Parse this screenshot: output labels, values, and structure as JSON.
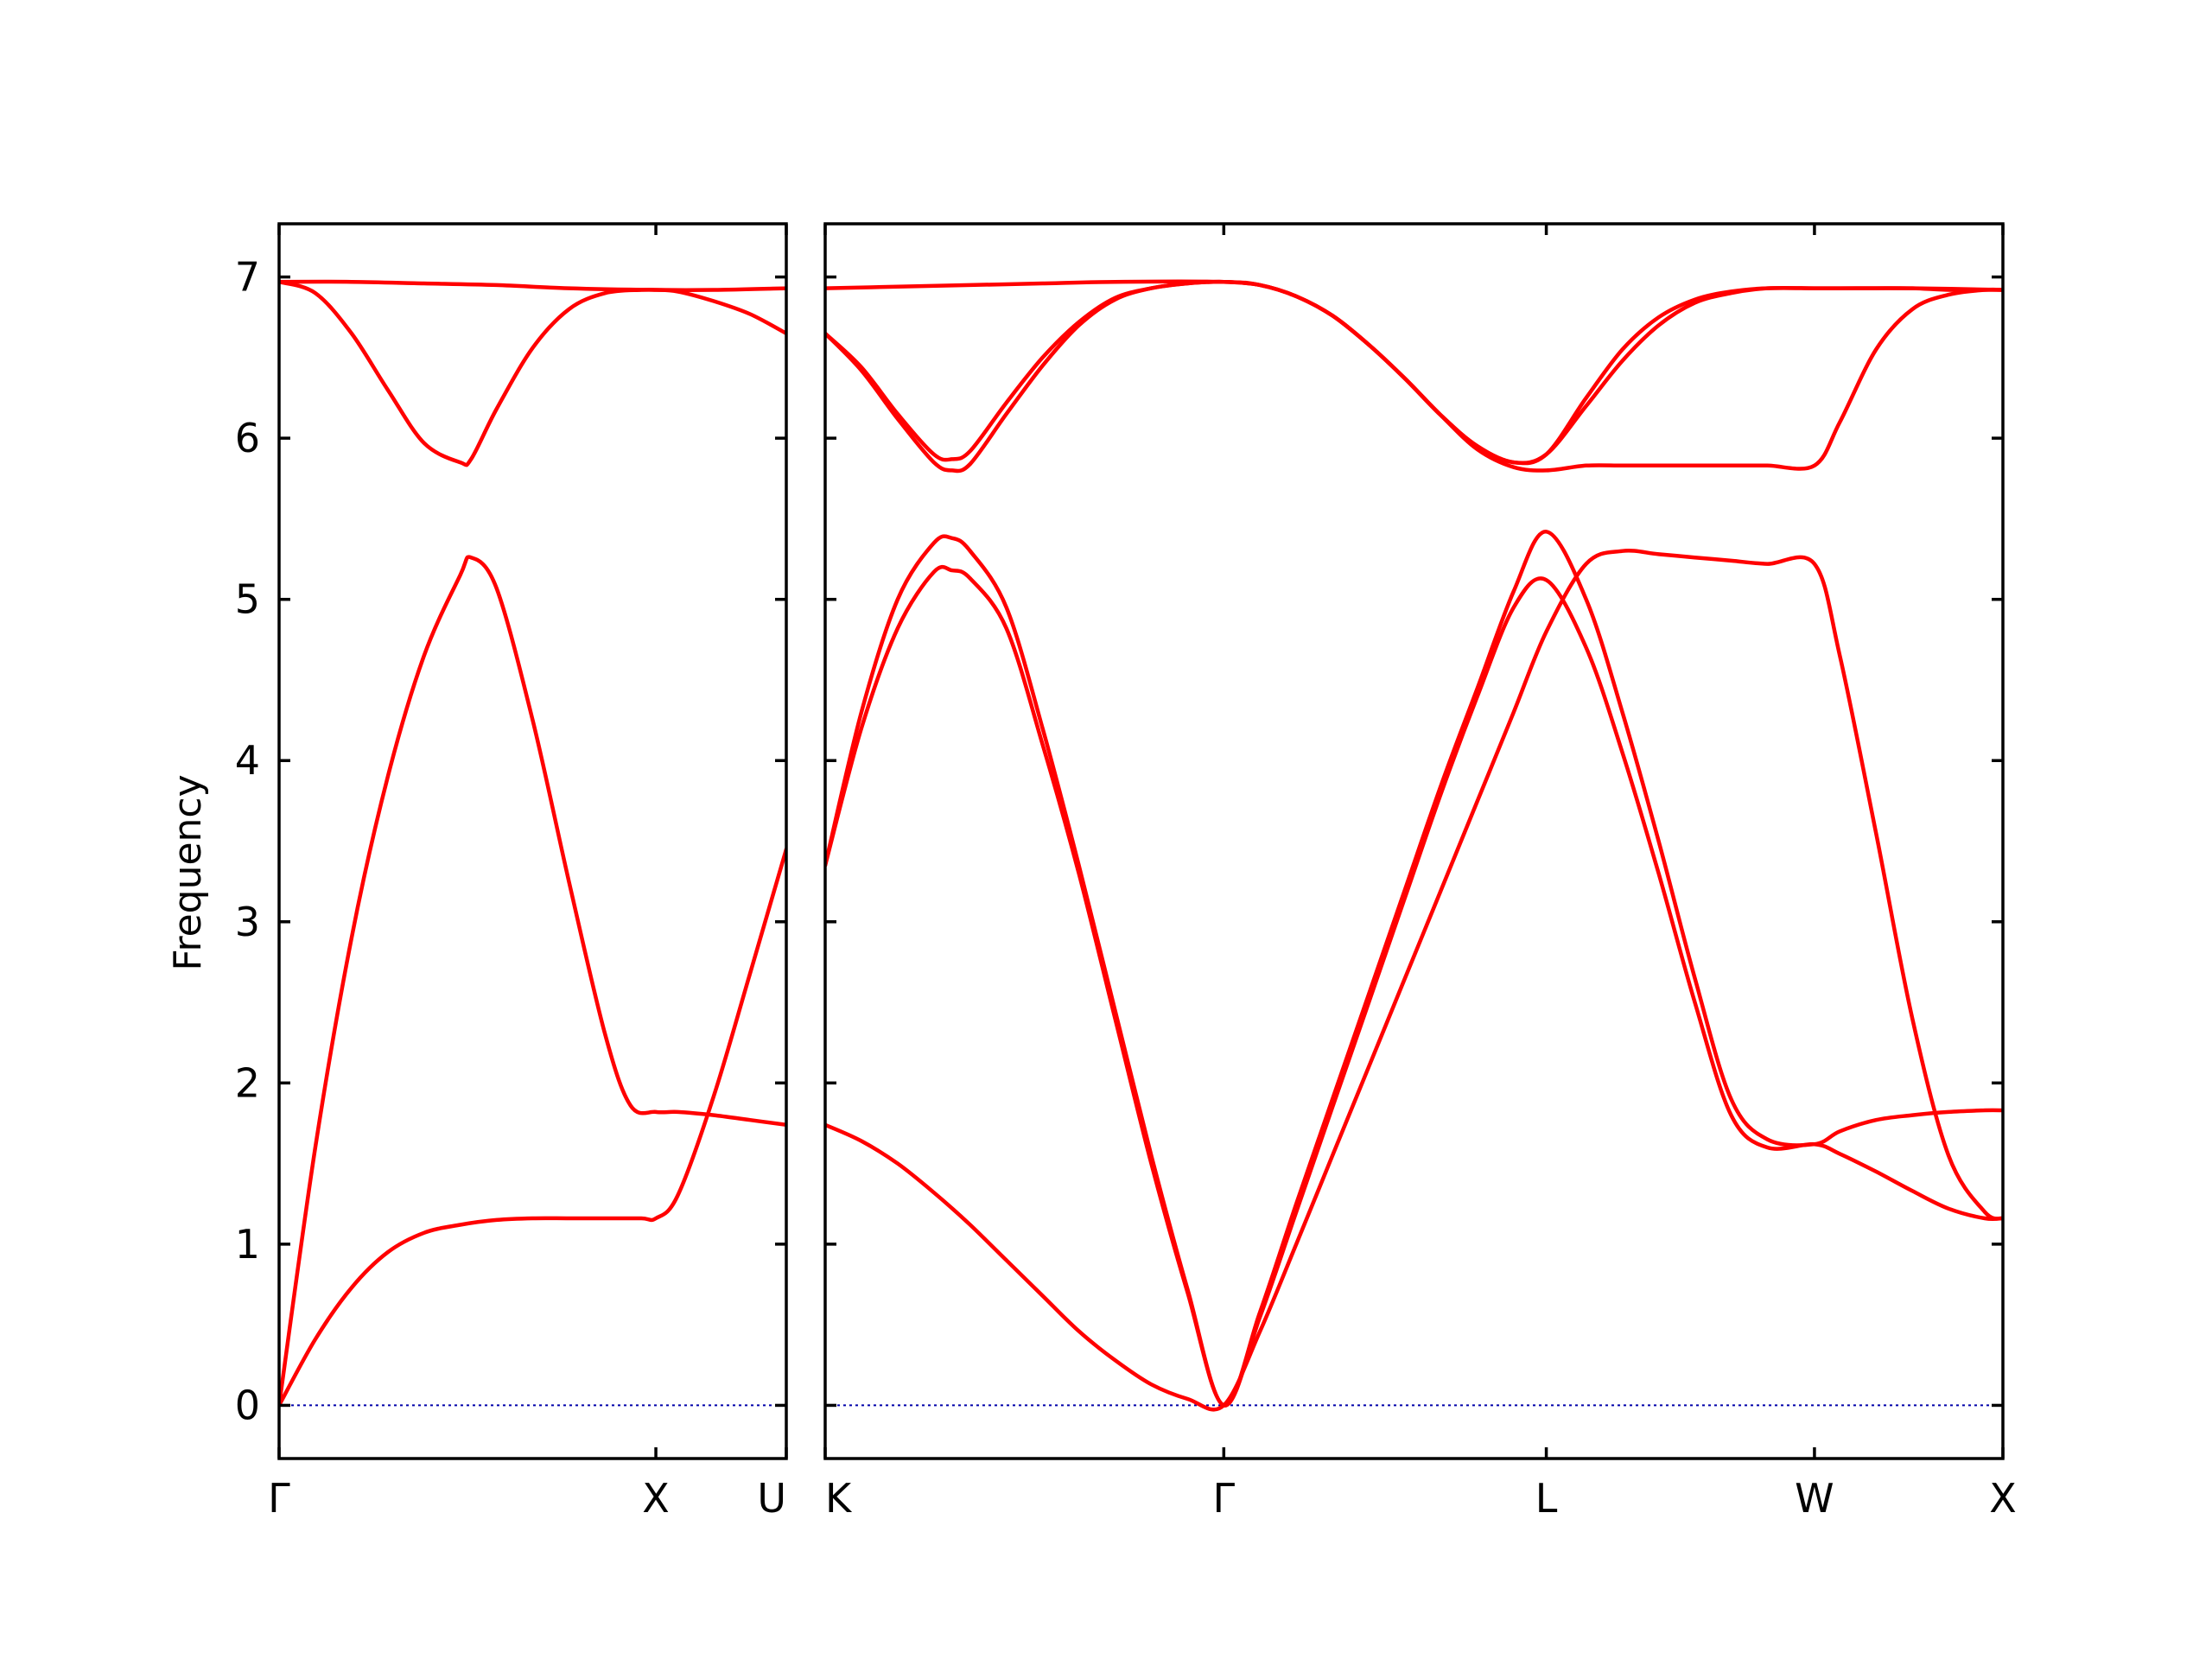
{
  "chart_data": {
    "type": "line",
    "title": "",
    "ylabel": "Frequency",
    "ylim": [
      -0.33,
      7.33
    ],
    "yticks": [
      0,
      1,
      2,
      3,
      4,
      5,
      6,
      7
    ],
    "grid": false,
    "legend": "none",
    "colors": {
      "bands": "#ff0000",
      "zero_line": "#0000aa"
    },
    "panels": [
      {
        "xlim": [
          0,
          1.4
        ],
        "xticks": [
          {
            "label": "Γ",
            "x": 0
          },
          {
            "label": "X",
            "x": 1.04
          },
          {
            "label": "U",
            "x": 1.4
          }
        ],
        "series": [
          {
            "x": [
              0,
              0.1,
              0.2,
              0.3,
              0.4,
              0.5,
              0.6,
              0.7,
              0.8,
              0.9,
              1.0,
              1.04,
              1.1,
              1.2,
              1.3,
              1.4
            ],
            "y": [
              0,
              0.41,
              0.73,
              0.95,
              1.07,
              1.12,
              1.15,
              1.16,
              1.16,
              1.16,
              1.16,
              1.16,
              1.3,
              1.92,
              2.68,
              3.45
            ]
          },
          {
            "x": [
              0,
              0.1,
              0.2,
              0.3,
              0.4,
              0.5,
              0.53,
              0.6,
              0.7,
              0.8,
              0.9,
              0.97,
              1.04,
              1.1,
              1.2,
              1.3,
              1.4
            ],
            "y": [
              0,
              1.6,
              2.9,
              3.9,
              4.65,
              5.15,
              5.26,
              5.07,
              4.25,
              3.25,
              2.3,
              1.86,
              1.82,
              1.82,
              1.8,
              1.77,
              1.74
            ]
          },
          {
            "x": [
              0,
              0.1,
              0.2,
              0.3,
              0.4,
              0.5,
              0.53,
              0.6,
              0.7,
              0.8,
              0.9,
              1.0,
              1.04,
              1.1,
              1.2,
              1.3,
              1.4
            ],
            "y": [
              6.97,
              6.9,
              6.65,
              6.3,
              5.97,
              5.85,
              5.87,
              6.18,
              6.56,
              6.8,
              6.9,
              6.92,
              6.92,
              6.91,
              6.85,
              6.77,
              6.65
            ]
          },
          {
            "x": [
              0,
              0.2,
              0.4,
              0.6,
              0.8,
              1.04,
              1.2,
              1.4
            ],
            "y": [
              6.97,
              6.97,
              6.96,
              6.95,
              6.93,
              6.92,
              6.92,
              6.93
            ]
          }
        ]
      },
      {
        "xlim": [
          0,
          3.25
        ],
        "xticks": [
          {
            "label": "K",
            "x": 0
          },
          {
            "label": "Γ",
            "x": 1.1
          },
          {
            "label": "L",
            "x": 1.99
          },
          {
            "label": "W",
            "x": 2.73
          },
          {
            "label": "X",
            "x": 3.25
          }
        ],
        "series": [
          {
            "x": [
              0,
              0.1,
              0.2,
              0.3,
              0.4,
              0.5,
              0.6,
              0.7,
              0.8,
              0.9,
              1.0,
              1.1,
              1.2,
              1.3,
              1.4,
              1.5,
              1.6,
              1.7,
              1.8,
              1.9,
              1.99,
              2.1,
              2.2,
              2.3,
              2.4,
              2.5,
              2.6,
              2.73,
              2.8,
              2.9,
              3.0,
              3.1,
              3.2,
              3.25
            ],
            "y": [
              1.74,
              1.64,
              1.5,
              1.32,
              1.12,
              0.9,
              0.68,
              0.46,
              0.28,
              0.13,
              0.04,
              0,
              0.46,
              1.0,
              1.55,
              2.1,
              2.65,
              3.2,
              3.75,
              4.3,
              4.8,
              5.22,
              5.3,
              5.28,
              5.26,
              5.24,
              5.22,
              5.22,
              4.65,
              3.55,
              2.4,
              1.55,
              1.2,
              1.16
            ]
          },
          {
            "x": [
              0,
              0.1,
              0.2,
              0.3,
              0.35,
              0.4,
              0.5,
              0.6,
              0.7,
              0.8,
              0.9,
              1.0,
              1.1,
              1.2,
              1.3,
              1.4,
              1.5,
              1.6,
              1.7,
              1.8,
              1.9,
              1.99,
              2.1,
              2.2,
              2.3,
              2.4,
              2.5,
              2.6,
              2.73,
              2.8,
              2.9,
              3.0,
              3.1,
              3.2,
              3.25
            ],
            "y": [
              3.35,
              4.2,
              4.82,
              5.17,
              5.18,
              5.13,
              4.82,
              4.1,
              3.3,
              2.4,
              1.5,
              0.7,
              0,
              0.55,
              1.2,
              1.85,
              2.5,
              3.15,
              3.8,
              4.4,
              4.95,
              5.12,
              4.7,
              4.05,
              3.3,
              2.5,
              1.8,
              1.6,
              1.62,
              1.56,
              1.45,
              1.33,
              1.22,
              1.16,
              1.16
            ]
          },
          {
            "x": [
              0,
              0.1,
              0.2,
              0.3,
              0.35,
              0.4,
              0.5,
              0.6,
              0.7,
              0.8,
              0.9,
              1.0,
              1.1,
              1.2,
              1.3,
              1.4,
              1.5,
              1.6,
              1.7,
              1.8,
              1.9,
              1.99,
              2.1,
              2.2,
              2.3,
              2.4,
              2.5,
              2.6,
              2.73,
              2.8,
              2.9,
              3.0,
              3.1,
              3.2,
              3.25
            ],
            "y": [
              3.35,
              4.3,
              5.0,
              5.35,
              5.38,
              5.3,
              4.95,
              4.2,
              3.35,
              2.45,
              1.55,
              0.72,
              0,
              0.58,
              1.25,
              1.9,
              2.55,
              3.2,
              3.85,
              4.45,
              5.05,
              5.42,
              5.0,
              4.3,
              3.5,
              2.65,
              1.9,
              1.65,
              1.62,
              1.7,
              1.77,
              1.8,
              1.82,
              1.83,
              1.83
            ]
          },
          {
            "x": [
              0,
              0.1,
              0.2,
              0.3,
              0.35,
              0.4,
              0.5,
              0.6,
              0.7,
              0.8,
              0.9,
              1.0,
              1.1,
              1.2,
              1.3,
              1.4,
              1.5,
              1.6,
              1.7,
              1.8,
              1.9,
              1.99,
              2.1,
              2.2,
              2.3,
              2.4,
              2.5,
              2.6,
              2.73,
              2.8,
              2.9,
              3.0,
              3.1,
              3.2,
              3.25
            ],
            "y": [
              6.65,
              6.42,
              6.12,
              5.85,
              5.8,
              5.84,
              6.15,
              6.45,
              6.7,
              6.86,
              6.93,
              6.96,
              6.97,
              6.95,
              6.88,
              6.76,
              6.58,
              6.37,
              6.14,
              5.93,
              5.82,
              5.8,
              5.83,
              5.83,
              5.83,
              5.83,
              5.83,
              5.83,
              5.83,
              6.1,
              6.55,
              6.8,
              6.89,
              6.92,
              6.92
            ]
          },
          {
            "x": [
              0,
              0.1,
              0.2,
              0.3,
              0.35,
              0.4,
              0.5,
              0.6,
              0.7,
              0.8,
              0.9,
              1.0,
              1.1,
              1.2,
              1.3,
              1.4,
              1.5,
              1.6,
              1.7,
              1.8,
              1.9,
              1.99,
              2.1,
              2.2,
              2.3,
              2.4,
              2.5,
              2.6,
              2.73,
              2.8,
              2.9,
              3.0,
              3.1,
              3.2,
              3.25
            ],
            "y": [
              6.65,
              6.44,
              6.15,
              5.9,
              5.87,
              5.92,
              6.22,
              6.5,
              6.72,
              6.87,
              6.93,
              6.96,
              6.97,
              6.95,
              6.88,
              6.76,
              6.58,
              6.37,
              6.14,
              5.95,
              5.85,
              5.9,
              6.2,
              6.48,
              6.7,
              6.84,
              6.9,
              6.93,
              6.93,
              6.93,
              6.93,
              6.93,
              6.92,
              6.92,
              6.92
            ]
          },
          {
            "x": [
              0,
              0.2,
              0.4,
              0.6,
              0.8,
              1.1,
              1.2,
              1.3,
              1.4,
              1.5,
              1.6,
              1.7,
              1.8,
              1.9,
              1.99,
              2.1,
              2.2,
              2.3,
              2.4,
              2.5,
              2.6,
              2.73,
              2.8,
              3.0,
              3.25
            ],
            "y": [
              6.93,
              6.94,
              6.95,
              6.96,
              6.97,
              6.97,
              6.95,
              6.88,
              6.76,
              6.58,
              6.37,
              6.14,
              5.95,
              5.85,
              5.9,
              6.25,
              6.55,
              6.75,
              6.86,
              6.91,
              6.93,
              6.93,
              6.93,
              6.93,
              6.92
            ]
          }
        ]
      }
    ]
  }
}
